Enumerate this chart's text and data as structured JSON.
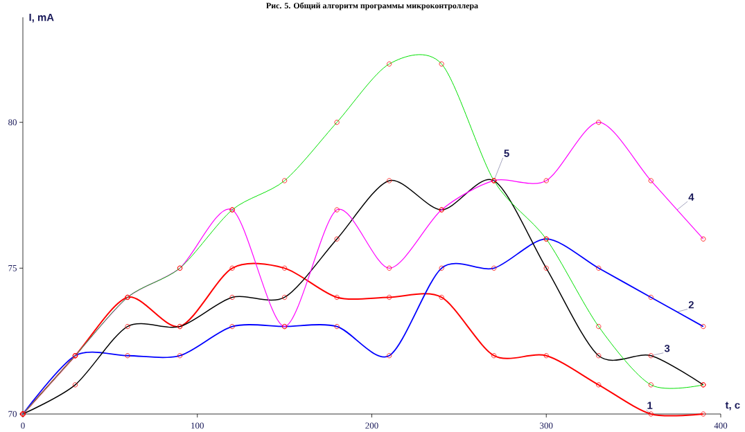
{
  "chart_data": {
    "type": "line",
    "title": "Рис. 5. Общий алгоритм программы микроконтроллера",
    "xlabel": "t, c",
    "ylabel": "I, mA",
    "x": [
      0,
      30,
      60,
      90,
      120,
      150,
      180,
      210,
      240,
      270,
      300,
      330,
      360,
      390
    ],
    "series": [
      {
        "name": "1",
        "color": "#ff0000",
        "values": [
          70,
          72,
          74,
          73,
          75,
          75,
          74,
          74,
          74,
          72,
          72,
          71,
          70,
          70
        ]
      },
      {
        "name": "2",
        "color": "#0000ff",
        "values": [
          70,
          72,
          72,
          72,
          73,
          73,
          73,
          72,
          75,
          75,
          76,
          75,
          74,
          73
        ]
      },
      {
        "name": "3",
        "color": "#000000",
        "values": [
          70,
          71,
          73,
          73,
          74,
          74,
          76,
          78,
          77,
          78,
          75,
          72,
          72,
          71
        ]
      },
      {
        "name": "4",
        "color": "#ff00ff",
        "values": [
          70,
          72,
          74,
          75,
          77,
          73,
          77,
          75,
          77,
          78,
          78,
          80,
          78,
          76
        ]
      },
      {
        "name": "5",
        "color": "#00e000",
        "values": [
          70,
          72,
          74,
          75,
          77,
          78,
          80,
          82,
          82,
          78,
          76,
          73,
          71,
          71
        ]
      }
    ],
    "xlim": [
      0,
      400
    ],
    "ylim": [
      70,
      83.6
    ],
    "xticks": [
      0,
      100,
      200,
      300,
      400
    ],
    "yticks": [
      70,
      75,
      80
    ],
    "marker": "circle",
    "grid": false
  }
}
